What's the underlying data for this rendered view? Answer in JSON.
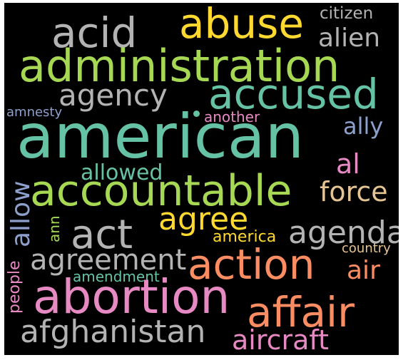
{
  "cloud": {
    "background": "#000000",
    "words": [
      {
        "text": "american",
        "color": "#66c2a5"
      },
      {
        "text": "accountable",
        "color": "#a6d854"
      },
      {
        "text": "administration",
        "color": "#a6d854"
      },
      {
        "text": "abuse",
        "color": "#ffd92f"
      },
      {
        "text": "acid",
        "color": "#b3b3b3"
      },
      {
        "text": "accused",
        "color": "#66c2a5"
      },
      {
        "text": "agency",
        "color": "#b3b3b3"
      },
      {
        "text": "act",
        "color": "#b3b3b3"
      },
      {
        "text": "action",
        "color": "#fc8d62"
      },
      {
        "text": "abortion",
        "color": "#e78ac3"
      },
      {
        "text": "affair",
        "color": "#fc8d62"
      },
      {
        "text": "afghanistan",
        "color": "#b3b3b3"
      },
      {
        "text": "agree",
        "color": "#ffd92f"
      },
      {
        "text": "agenda",
        "color": "#b3b3b3"
      },
      {
        "text": "agreement",
        "color": "#b3b3b3"
      },
      {
        "text": "force",
        "color": "#e5c494"
      },
      {
        "text": "allowed",
        "color": "#66c2a5"
      },
      {
        "text": "allow",
        "color": "#8da0cb"
      },
      {
        "text": "alien",
        "color": "#b3b3b3"
      },
      {
        "text": "citizen",
        "color": "#b3b3b3"
      },
      {
        "text": "ally",
        "color": "#8da0cb"
      },
      {
        "text": "al",
        "color": "#e78ac3"
      },
      {
        "text": "air",
        "color": "#fc8d62"
      },
      {
        "text": "aircraft",
        "color": "#e78ac3"
      },
      {
        "text": "amnesty",
        "color": "#8da0cb"
      },
      {
        "text": "another",
        "color": "#e78ac3"
      },
      {
        "text": "america",
        "color": "#ffd92f"
      },
      {
        "text": "country",
        "color": "#e5c494"
      },
      {
        "text": "amendment",
        "color": "#66c2a5"
      },
      {
        "text": "ann",
        "color": "#a6d854"
      },
      {
        "text": "people",
        "color": "#e78ac3"
      }
    ],
    "dot_color": "#66c2a5"
  }
}
